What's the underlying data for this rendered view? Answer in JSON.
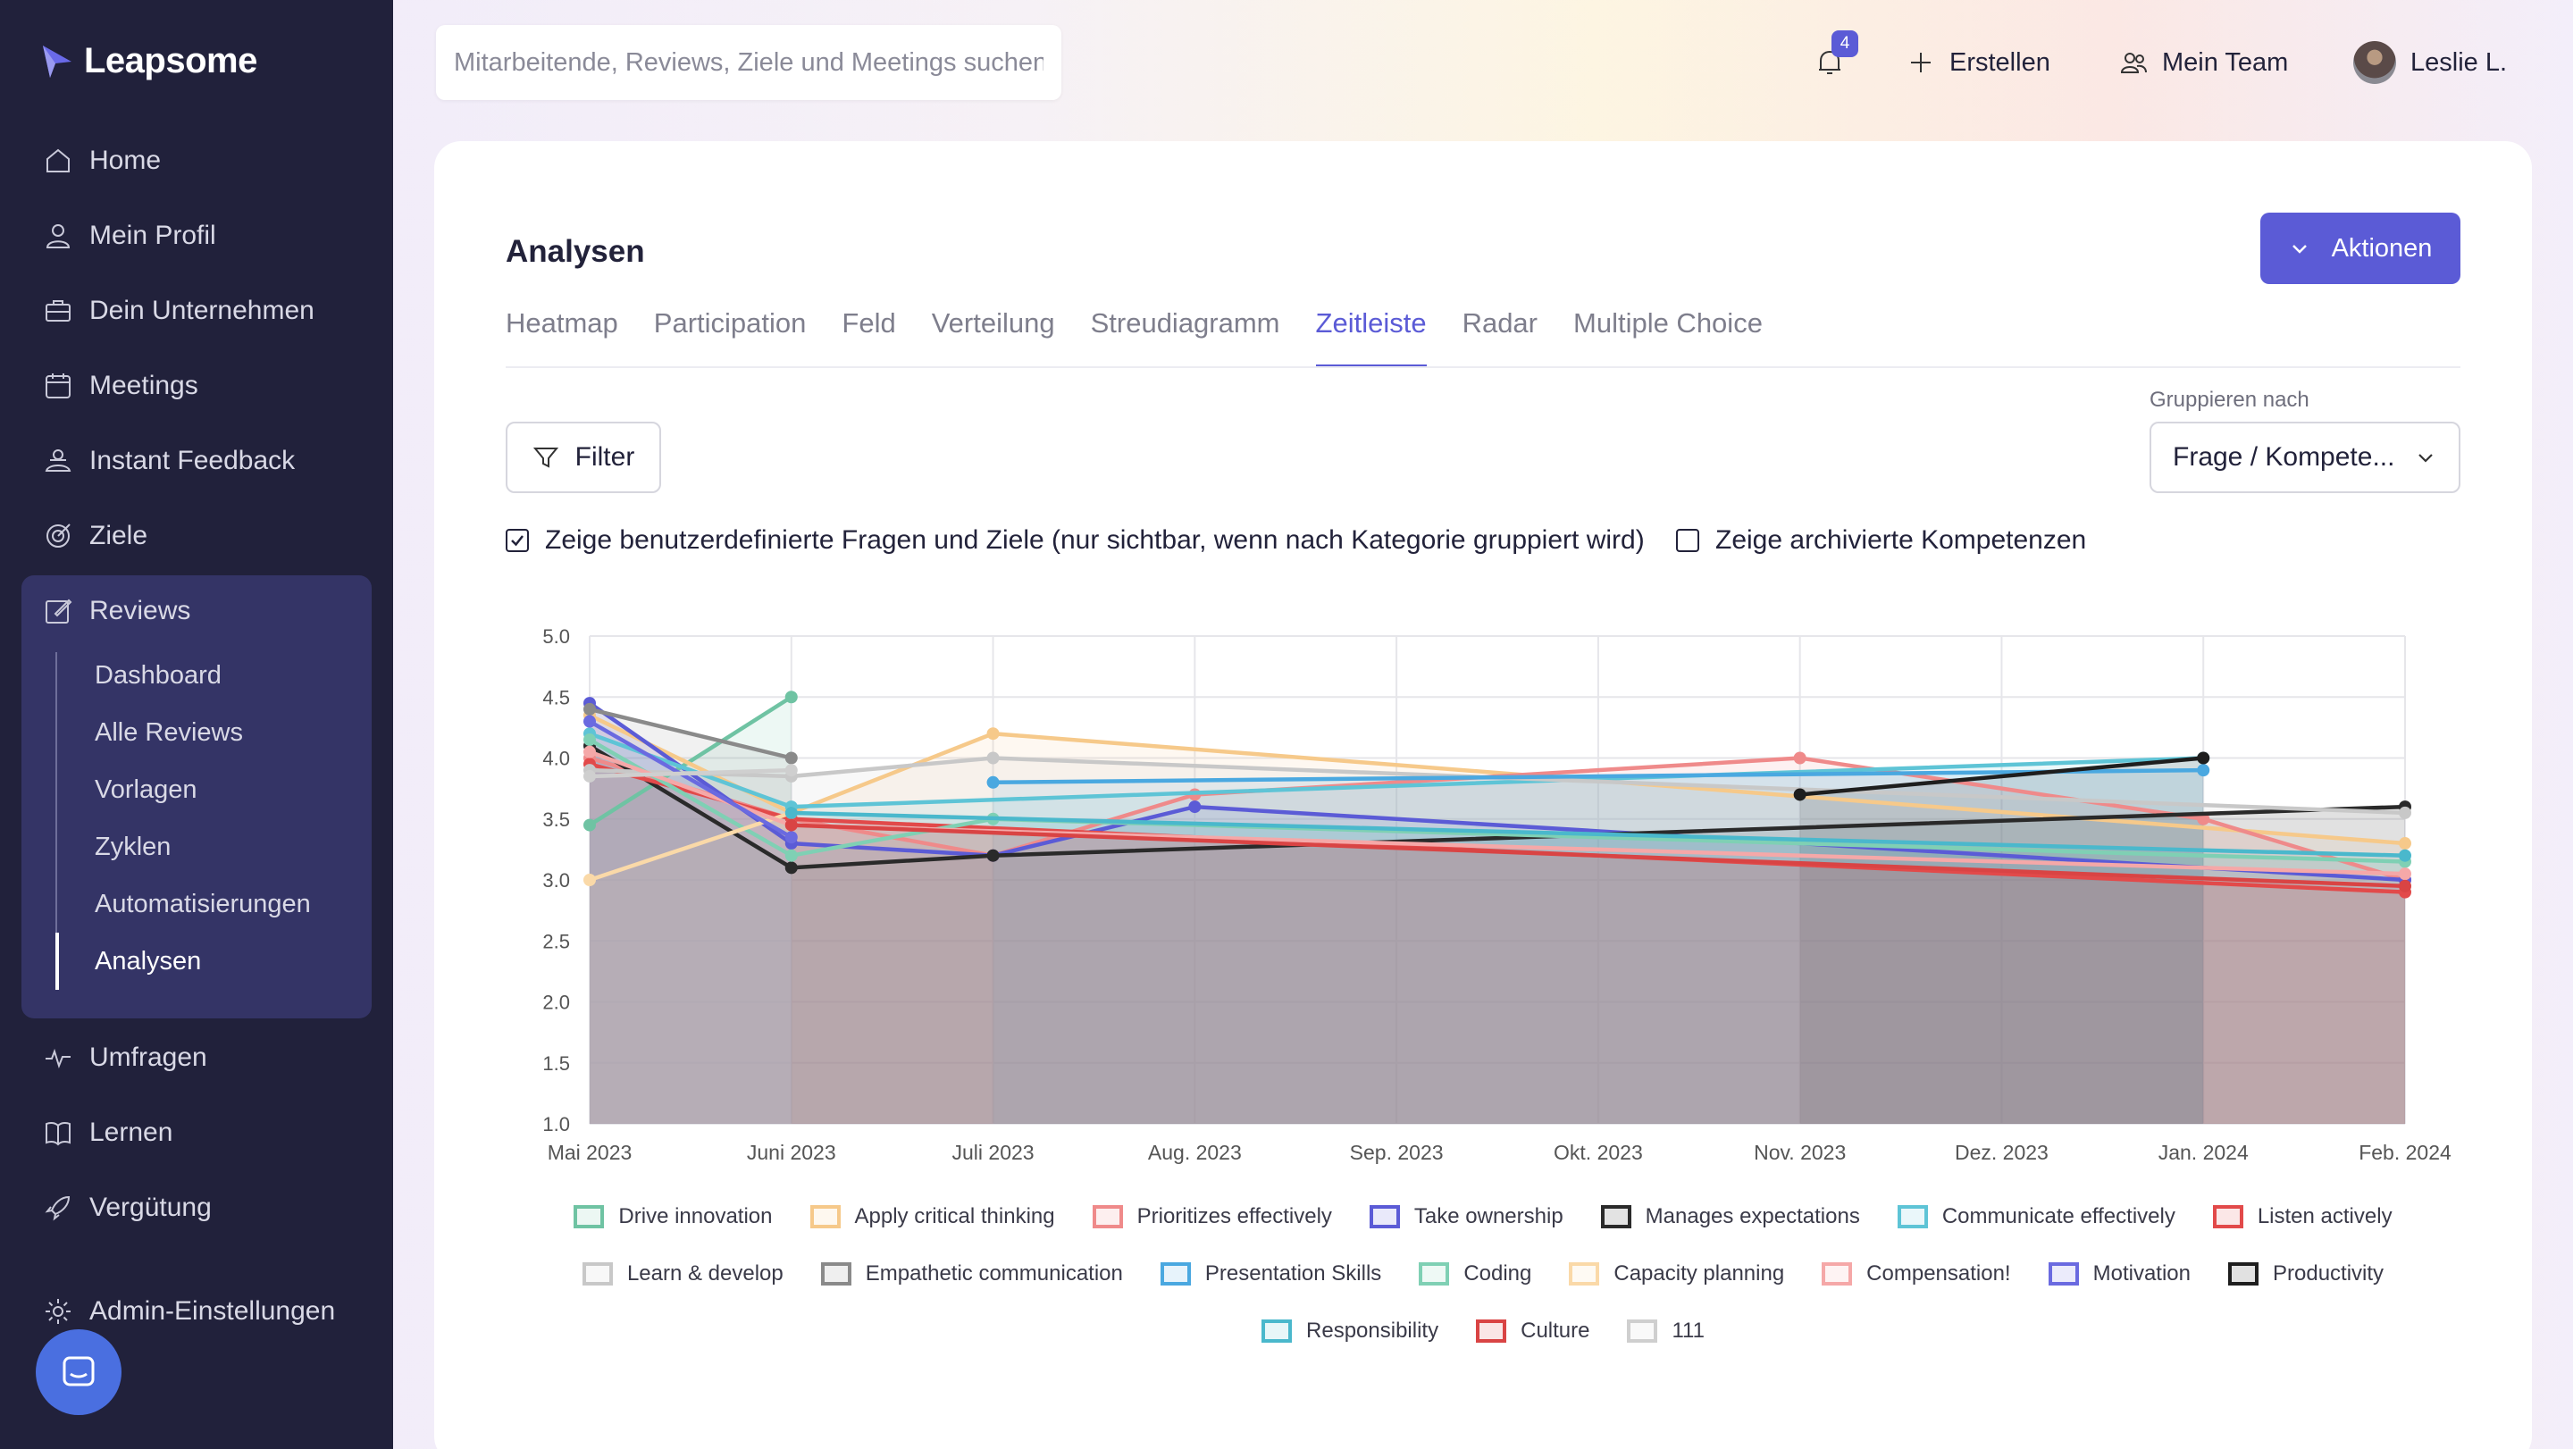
{
  "app": {
    "name": "Leapsome"
  },
  "sidebar": {
    "items": [
      {
        "label": "Home",
        "icon": "home-icon"
      },
      {
        "label": "Mein Profil",
        "icon": "user-icon"
      },
      {
        "label": "Dein Unternehmen",
        "icon": "briefcase-icon"
      },
      {
        "label": "Meetings",
        "icon": "calendar-icon"
      },
      {
        "label": "Instant Feedback",
        "icon": "feedback-icon"
      },
      {
        "label": "Ziele",
        "icon": "target-icon"
      },
      {
        "label": "Reviews",
        "icon": "edit-icon"
      },
      {
        "label": "Umfragen",
        "icon": "pulse-icon"
      },
      {
        "label": "Lernen",
        "icon": "book-icon"
      },
      {
        "label": "Vergütung",
        "icon": "rocket-icon"
      },
      {
        "label": "Admin-Einstellungen",
        "icon": "gear-icon"
      }
    ],
    "reviews_sub": [
      "Dashboard",
      "Alle Reviews",
      "Vorlagen",
      "Zyklen",
      "Automatisierungen",
      "Analysen"
    ],
    "active_sub": "Analysen"
  },
  "topbar": {
    "search_placeholder": "Mitarbeitende, Reviews, Ziele und Meetings suchen",
    "notification_count": "4",
    "create_label": "Erstellen",
    "team_label": "Mein Team",
    "user_label": "Leslie L."
  },
  "page": {
    "title": "Analysen",
    "actions_label": "Aktionen",
    "tabs": [
      "Heatmap",
      "Participation",
      "Feld",
      "Verteilung",
      "Streudiagramm",
      "Zeitleiste",
      "Radar",
      "Multiple Choice"
    ],
    "active_tab": "Zeitleiste",
    "filter_label": "Filter",
    "group_by_label": "Gruppieren nach",
    "group_by_value": "Frage / Kompete...",
    "checkbox_custom": "Zeige benutzerdefinierte Fragen und Ziele (nur sichtbar, wenn nach Kategorie gruppiert wird)",
    "checkbox_custom_checked": true,
    "checkbox_archived": "Zeige archivierte Kompetenzen",
    "checkbox_archived_checked": false
  },
  "chart_data": {
    "type": "line",
    "x": [
      "Mai 2023",
      "Juni 2023",
      "Juli 2023",
      "Aug. 2023",
      "Sep. 2023",
      "Okt. 2023",
      "Nov. 2023",
      "Dez. 2023",
      "Jan. 2024",
      "Feb. 2024"
    ],
    "ylim": [
      1.0,
      5.0
    ],
    "yticks": [
      1.0,
      1.5,
      2.0,
      2.5,
      3.0,
      3.5,
      4.0,
      4.5,
      5.0
    ],
    "grid": true,
    "legend_position": "bottom",
    "series": [
      {
        "name": "Drive innovation",
        "color": "#6fc3a3",
        "points": [
          [
            0,
            3.45
          ],
          [
            1,
            4.5
          ]
        ]
      },
      {
        "name": "Apply critical thinking",
        "color": "#f6c98a",
        "points": [
          [
            0,
            4.35
          ],
          [
            1,
            3.55
          ],
          [
            2,
            4.2
          ],
          [
            9,
            3.3
          ]
        ]
      },
      {
        "name": "Prioritizes effectively",
        "color": "#ef8a8a",
        "points": [
          [
            0,
            4.0
          ],
          [
            1,
            3.5
          ],
          [
            2,
            3.2
          ],
          [
            3,
            3.7
          ],
          [
            6,
            4.0
          ],
          [
            8,
            3.5
          ],
          [
            9,
            3.0
          ]
        ]
      },
      {
        "name": "Take ownership",
        "color": "#5b5bd6",
        "points": [
          [
            0,
            4.45
          ],
          [
            1,
            3.3
          ],
          [
            2,
            3.2
          ],
          [
            3,
            3.6
          ],
          [
            9,
            3.0
          ]
        ]
      },
      {
        "name": "Manages expectations",
        "color": "#2a2a2a",
        "points": [
          [
            0,
            4.1
          ],
          [
            1,
            3.1
          ],
          [
            2,
            3.2
          ],
          [
            9,
            3.6
          ]
        ]
      },
      {
        "name": "Communicate effectively",
        "color": "#5ec4d6",
        "points": [
          [
            0,
            4.2
          ],
          [
            1,
            3.6
          ],
          [
            8,
            4.0
          ]
        ]
      },
      {
        "name": "Listen actively",
        "color": "#e24a4a",
        "points": [
          [
            0,
            3.95
          ],
          [
            1,
            3.5
          ],
          [
            9,
            2.9
          ]
        ]
      },
      {
        "name": "Learn & develop",
        "color": "#c8c8c8",
        "points": [
          [
            0,
            3.9
          ],
          [
            1,
            3.85
          ],
          [
            2,
            4.0
          ],
          [
            9,
            3.55
          ]
        ]
      },
      {
        "name": "Empathetic communication",
        "color": "#8a8a8a",
        "points": [
          [
            0,
            4.4
          ],
          [
            1,
            4.0
          ]
        ]
      },
      {
        "name": "Presentation Skills",
        "color": "#4aa8e0",
        "points": [
          [
            2,
            3.8
          ],
          [
            8,
            3.9
          ]
        ]
      },
      {
        "name": "Coding",
        "color": "#7fd0b4",
        "points": [
          [
            0,
            4.15
          ],
          [
            1,
            3.2
          ],
          [
            2,
            3.5
          ],
          [
            9,
            3.15
          ]
        ]
      },
      {
        "name": "Capacity planning",
        "color": "#fad9a8",
        "points": [
          [
            0,
            3.0
          ],
          [
            1,
            3.55
          ]
        ]
      },
      {
        "name": "Compensation!",
        "color": "#f5a8a8",
        "points": [
          [
            0,
            4.05
          ],
          [
            1,
            3.45
          ],
          [
            9,
            3.05
          ]
        ]
      },
      {
        "name": "Motivation",
        "color": "#6a6ae0",
        "points": [
          [
            0,
            4.3
          ],
          [
            1,
            3.35
          ]
        ]
      },
      {
        "name": "Productivity",
        "color": "#1e1e1e",
        "points": [
          [
            6,
            3.7
          ],
          [
            8,
            4.0
          ]
        ]
      },
      {
        "name": "Responsibility",
        "color": "#4ab8cc",
        "points": [
          [
            1,
            3.55
          ],
          [
            9,
            3.2
          ]
        ]
      },
      {
        "name": "Culture",
        "color": "#d94444",
        "points": [
          [
            1,
            3.45
          ],
          [
            9,
            2.95
          ]
        ]
      },
      {
        "name": "111",
        "color": "#cfcfcf",
        "points": [
          [
            0,
            3.85
          ],
          [
            1,
            3.9
          ]
        ]
      }
    ]
  }
}
